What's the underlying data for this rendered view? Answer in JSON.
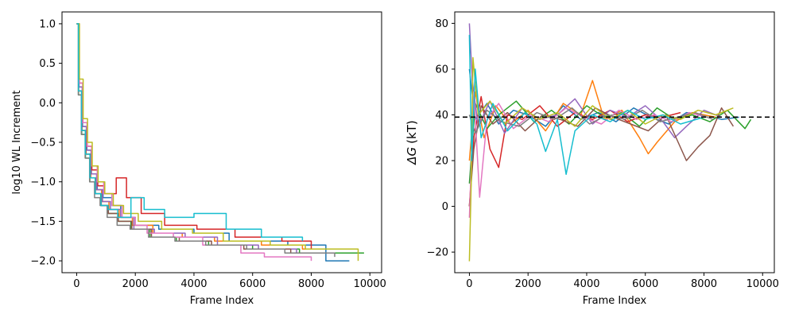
{
  "chart_data": [
    {
      "type": "line",
      "title": "",
      "xlabel": "Frame Index",
      "ylabel": "log10 WL Increment",
      "xlim": [
        -500,
        10400
      ],
      "ylim": [
        -2.15,
        1.15
      ],
      "xticks": [
        0,
        2000,
        4000,
        6000,
        8000,
        10000
      ],
      "xtick_labels": [
        "0",
        "2000",
        "4000",
        "6000",
        "8000",
        "10000"
      ],
      "yticks": [
        1.0,
        0.5,
        0.0,
        -0.5,
        -1.0,
        -1.5,
        -2.0
      ],
      "ytick_labels": [
        "1.0",
        "0.5",
        "0.0",
        "−0.5",
        "−1.0",
        "−1.5",
        "−2.0"
      ],
      "grid": false,
      "series": [
        {
          "color": "#1f77b4",
          "x": [
            0,
            80,
            200,
            350,
            500,
            700,
            900,
            1200,
            1500,
            2000,
            2800,
            4000,
            5200,
            7200,
            8500,
            9300
          ],
          "y": [
            1.0,
            0.2,
            -0.3,
            -0.6,
            -0.9,
            -1.1,
            -1.2,
            -1.3,
            -1.45,
            -1.55,
            -1.6,
            -1.65,
            -1.75,
            -1.8,
            -2.0,
            -2.0
          ]
        },
        {
          "color": "#ff7f0e",
          "x": [
            0,
            70,
            180,
            320,
            480,
            650,
            850,
            1100,
            1450,
            1900,
            2600,
            3600,
            4700,
            6300,
            7700,
            9000
          ],
          "y": [
            1.0,
            0.15,
            -0.35,
            -0.65,
            -0.95,
            -1.1,
            -1.25,
            -1.35,
            -1.45,
            -1.55,
            -1.65,
            -1.7,
            -1.75,
            -1.8,
            -1.85,
            -1.85
          ]
        },
        {
          "color": "#2ca02c",
          "x": [
            0,
            60,
            170,
            300,
            450,
            620,
            820,
            1050,
            1400,
            1850,
            2500,
            3400,
            4500,
            6000,
            7600,
            9800
          ],
          "y": [
            1.0,
            0.1,
            -0.4,
            -0.7,
            -1.0,
            -1.15,
            -1.3,
            -1.4,
            -1.5,
            -1.6,
            -1.7,
            -1.75,
            -1.8,
            -1.85,
            -1.9,
            -1.9
          ]
        },
        {
          "color": "#d62728",
          "x": [
            0,
            90,
            210,
            360,
            520,
            720,
            950,
            1350,
            1700,
            2200,
            3000,
            4100,
            5400,
            7000,
            8000,
            9000
          ],
          "y": [
            1.0,
            0.25,
            -0.25,
            -0.55,
            -0.85,
            -1.05,
            -1.15,
            -0.95,
            -1.2,
            -1.4,
            -1.55,
            -1.6,
            -1.7,
            -1.75,
            -1.85,
            -1.85
          ]
        },
        {
          "color": "#9467bd",
          "x": [
            0,
            75,
            190,
            330,
            490,
            680,
            880,
            1150,
            1500,
            1950,
            2650,
            3700,
            4800,
            6200,
            7500,
            8600
          ],
          "y": [
            1.0,
            0.2,
            -0.3,
            -0.6,
            -0.9,
            -1.1,
            -1.25,
            -1.35,
            -1.45,
            -1.6,
            -1.65,
            -1.7,
            -1.8,
            -1.85,
            -1.9,
            -1.9
          ]
        },
        {
          "color": "#8c564b",
          "x": [
            0,
            65,
            175,
            310,
            470,
            640,
            840,
            1080,
            1420,
            1880,
            2550,
            3500,
            4600,
            5700,
            7300,
            8500
          ],
          "y": [
            1.0,
            0.15,
            -0.35,
            -0.65,
            -0.95,
            -1.15,
            -1.3,
            -1.4,
            -1.5,
            -1.6,
            -1.7,
            -1.75,
            -1.8,
            -1.85,
            -1.9,
            -1.9
          ]
        },
        {
          "color": "#e377c2",
          "x": [
            0,
            85,
            205,
            355,
            510,
            700,
            920,
            1200,
            1550,
            2000,
            2400,
            3300,
            4300,
            5600,
            6400,
            8000
          ],
          "y": [
            1.0,
            0.25,
            -0.25,
            -0.55,
            -0.8,
            -1.0,
            -1.15,
            -1.3,
            -1.45,
            -1.55,
            -1.65,
            -1.7,
            -1.8,
            -1.9,
            -1.95,
            -2.0
          ]
        },
        {
          "color": "#7f7f7f",
          "x": [
            0,
            55,
            160,
            290,
            440,
            610,
            800,
            1040,
            1380,
            1820,
            2450,
            3350,
            4400,
            5800,
            7100,
            8800
          ],
          "y": [
            1.0,
            0.1,
            -0.4,
            -0.7,
            -1.0,
            -1.2,
            -1.3,
            -1.45,
            -1.55,
            -1.6,
            -1.7,
            -1.75,
            -1.8,
            -1.85,
            -1.9,
            -1.95
          ]
        },
        {
          "color": "#bcbd22",
          "x": [
            0,
            95,
            220,
            370,
            530,
            730,
            960,
            1250,
            1600,
            2100,
            2900,
            3950,
            5000,
            6600,
            7800,
            9600
          ],
          "y": [
            1.0,
            0.3,
            -0.2,
            -0.5,
            -0.8,
            -1.0,
            -1.15,
            -1.3,
            -1.4,
            -1.5,
            -1.6,
            -1.65,
            -1.75,
            -1.8,
            -1.85,
            -2.0
          ]
        },
        {
          "color": "#17becf",
          "x": [
            0,
            60,
            165,
            295,
            455,
            630,
            830,
            1070,
            1400,
            1850,
            2300,
            3000,
            4000,
            5100,
            6300,
            7700
          ],
          "y": [
            1.0,
            0.15,
            -0.35,
            -0.65,
            -0.95,
            -1.15,
            -1.3,
            -1.35,
            -1.45,
            -1.2,
            -1.35,
            -1.45,
            -1.4,
            -1.6,
            -1.7,
            -1.75
          ]
        }
      ]
    },
    {
      "type": "line",
      "title": "",
      "xlabel": "Frame Index",
      "ylabel": "ΔG (kT)",
      "ylabel_symbol": "ΔG",
      "ylabel_unit": "(kT)",
      "xlim": [
        -500,
        10400
      ],
      "ylim": [
        -29,
        85
      ],
      "xticks": [
        0,
        2000,
        4000,
        6000,
        8000,
        10000
      ],
      "xtick_labels": [
        "0",
        "2000",
        "4000",
        "6000",
        "8000",
        "10000"
      ],
      "yticks": [
        80,
        60,
        40,
        20,
        0,
        -20
      ],
      "ytick_labels": [
        "80",
        "60",
        "40",
        "20",
        "0",
        "−20"
      ],
      "grid": false,
      "reference_line": {
        "y": 39,
        "style": "dashed",
        "color": "#000000"
      },
      "series": [
        {
          "color": "#1f77b4",
          "x": [
            0,
            200,
            600,
            1000,
            1500,
            2000,
            2600,
            3200,
            3800,
            4400,
            5000,
            5600,
            6200,
            6800,
            7400,
            8000,
            8600,
            9200
          ],
          "y": [
            60,
            38,
            45,
            36,
            42,
            40,
            35,
            44,
            38,
            41,
            37,
            43,
            39,
            36,
            41,
            40,
            38,
            39
          ]
        },
        {
          "color": "#ff7f0e",
          "x": [
            0,
            200,
            500,
            900,
            1400,
            2000,
            2600,
            3200,
            3800,
            4200,
            4600,
            5200,
            5800,
            6100,
            6400,
            7000,
            7600,
            8400
          ],
          "y": [
            20,
            50,
            30,
            44,
            36,
            42,
            33,
            45,
            40,
            55,
            38,
            42,
            30,
            23,
            28,
            37,
            41,
            39
          ]
        },
        {
          "color": "#2ca02c",
          "x": [
            0,
            200,
            600,
            1000,
            1600,
            2200,
            2800,
            3400,
            4000,
            4600,
            5200,
            5800,
            6400,
            7000,
            7600,
            8200,
            8800,
            9400,
            9600
          ],
          "y": [
            10,
            45,
            34,
            40,
            46,
            37,
            42,
            36,
            44,
            39,
            41,
            35,
            43,
            38,
            40,
            37,
            42,
            34,
            38
          ]
        },
        {
          "color": "#d62728",
          "x": [
            0,
            150,
            400,
            700,
            1000,
            1300,
            1800,
            2400,
            3000,
            3600,
            4200,
            4800,
            5400,
            6000,
            6600,
            7200
          ],
          "y": [
            0,
            30,
            48,
            25,
            17,
            40,
            38,
            44,
            35,
            41,
            38,
            42,
            37,
            40,
            39,
            41
          ]
        },
        {
          "color": "#9467bd",
          "x": [
            0,
            100,
            300,
            700,
            1200,
            1800,
            2400,
            3000,
            3600,
            4200,
            4800,
            5400,
            6000,
            6600,
            7000,
            7400,
            8000,
            8600
          ],
          "y": [
            80,
            55,
            35,
            46,
            32,
            43,
            38,
            40,
            47,
            36,
            42,
            39,
            44,
            37,
            30,
            35,
            42,
            39
          ]
        },
        {
          "color": "#8c564b",
          "x": [
            0,
            150,
            400,
            800,
            1300,
            1900,
            2500,
            3100,
            3700,
            4300,
            4900,
            5500,
            6100,
            6700,
            7400,
            7800,
            8200,
            8600,
            9000
          ],
          "y": [
            0,
            25,
            44,
            36,
            41,
            33,
            40,
            38,
            35,
            43,
            39,
            36,
            33,
            40,
            20,
            26,
            31,
            43,
            35
          ]
        },
        {
          "color": "#e377c2",
          "x": [
            0,
            150,
            350,
            600,
            1000,
            1500,
            2100,
            2700,
            3300,
            3900,
            4500,
            5100,
            5700,
            6300,
            6900,
            7500,
            8100
          ],
          "y": [
            -5,
            50,
            4,
            38,
            45,
            34,
            40,
            37,
            43,
            39,
            36,
            42,
            38,
            40,
            37,
            41,
            39
          ]
        },
        {
          "color": "#7f7f7f",
          "x": [
            0,
            200,
            600,
            1100,
            1700,
            2300,
            2900,
            3500,
            4100,
            4700,
            5300,
            5900,
            6500,
            7100,
            7700,
            8300
          ],
          "y": [
            40,
            32,
            42,
            37,
            35,
            41,
            38,
            43,
            36,
            40,
            38,
            42,
            37,
            39,
            41,
            38
          ]
        },
        {
          "color": "#bcbd22",
          "x": [
            0,
            60,
            120,
            300,
            700,
            1200,
            1800,
            2400,
            3000,
            3600,
            4200,
            4800,
            5400,
            6000,
            6600,
            7200,
            7800,
            8400,
            9000
          ],
          "y": [
            -24,
            10,
            65,
            40,
            46,
            36,
            43,
            38,
            41,
            35,
            44,
            38,
            42,
            36,
            40,
            38,
            42,
            40,
            43
          ]
        },
        {
          "color": "#17becf",
          "x": [
            0,
            80,
            200,
            400,
            800,
            1300,
            1900,
            2300,
            2600,
            3000,
            3300,
            3600,
            4200,
            4800,
            5400,
            6000,
            6600,
            7200,
            8000
          ],
          "y": [
            75,
            20,
            60,
            30,
            45,
            33,
            41,
            36,
            24,
            38,
            14,
            33,
            40,
            37,
            42,
            38,
            40,
            36,
            39
          ]
        }
      ]
    }
  ]
}
